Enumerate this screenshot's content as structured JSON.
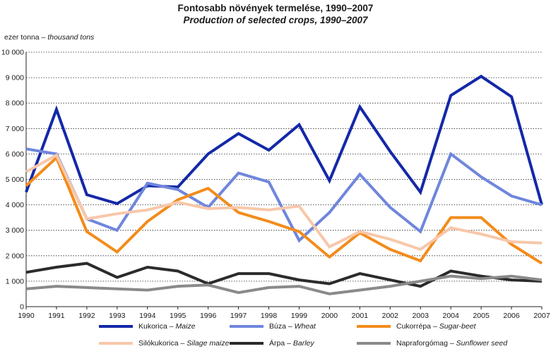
{
  "header": {
    "title_hu": "Fontosabb növények termelése, 1990–2007",
    "title_en": "Production of selected crops, 1990–2007",
    "unit_hu": "ezer tonna –",
    "unit_en": "thousand tons"
  },
  "chart_data": {
    "type": "line",
    "title": "Fontosabb növények termelése, 1990–2007 / Production of selected crops, 1990–2007",
    "ylabel": "ezer tonna – thousand tons",
    "ylim": [
      0,
      10000
    ],
    "yticks": [
      "0",
      "1 000",
      "2 000",
      "3 000",
      "4 000",
      "5 000",
      "6 000",
      "7 000",
      "8 000",
      "9 000",
      "10 000"
    ],
    "grid": true,
    "legend_position": "bottom",
    "x": [
      "1990",
      "1991",
      "1992",
      "1993",
      "1994",
      "1995",
      "1996",
      "1997",
      "1998",
      "1999",
      "2000",
      "2001",
      "2002",
      "2003",
      "2004",
      "2005",
      "2006",
      "2007"
    ],
    "series": [
      {
        "name_hu": "Kukorica",
        "name_en": "Maize",
        "color": "#1428a8",
        "values": [
          4500,
          7750,
          4400,
          4050,
          4750,
          4700,
          6000,
          6800,
          6150,
          7150,
          4950,
          7850,
          6100,
          4500,
          8300,
          9050,
          8250,
          4000
        ]
      },
      {
        "name_hu": "Búza",
        "name_en": "Wheat",
        "color": "#6f86dc",
        "values": [
          6200,
          6000,
          3450,
          3000,
          4850,
          4600,
          3900,
          5250,
          4900,
          2600,
          3700,
          5200,
          3900,
          2950,
          6000,
          5100,
          4350,
          4000
        ]
      },
      {
        "name_hu": "Cukorrépa",
        "name_en": "Sugar-beet",
        "color": "#f28c1c",
        "values": [
          4750,
          5850,
          2950,
          2150,
          3350,
          4200,
          4650,
          3700,
          3350,
          2950,
          1950,
          2900,
          2250,
          1800,
          3500,
          3500,
          2450,
          1700
        ]
      },
      {
        "name_hu": "Silókukorica",
        "name_en": "Silage maize",
        "color": "#f8c7aa",
        "values": [
          5300,
          5950,
          3450,
          3650,
          3800,
          4100,
          3850,
          3900,
          3800,
          3950,
          2350,
          2950,
          2650,
          2250,
          3100,
          2850,
          2550,
          2500
        ]
      },
      {
        "name_hu": "Árpa",
        "name_en": "Barley",
        "color": "#2b2b2b",
        "values": [
          1350,
          1550,
          1700,
          1150,
          1550,
          1400,
          900,
          1300,
          1300,
          1050,
          900,
          1300,
          1050,
          800,
          1400,
          1200,
          1050,
          1000
        ]
      },
      {
        "name_hu": "Napraforgómag",
        "name_en": "Sunflower seed",
        "color": "#8a8a8a",
        "values": [
          700,
          800,
          750,
          700,
          650,
          800,
          850,
          550,
          750,
          800,
          500,
          650,
          800,
          1000,
          1200,
          1100,
          1200,
          1050
        ]
      }
    ]
  }
}
